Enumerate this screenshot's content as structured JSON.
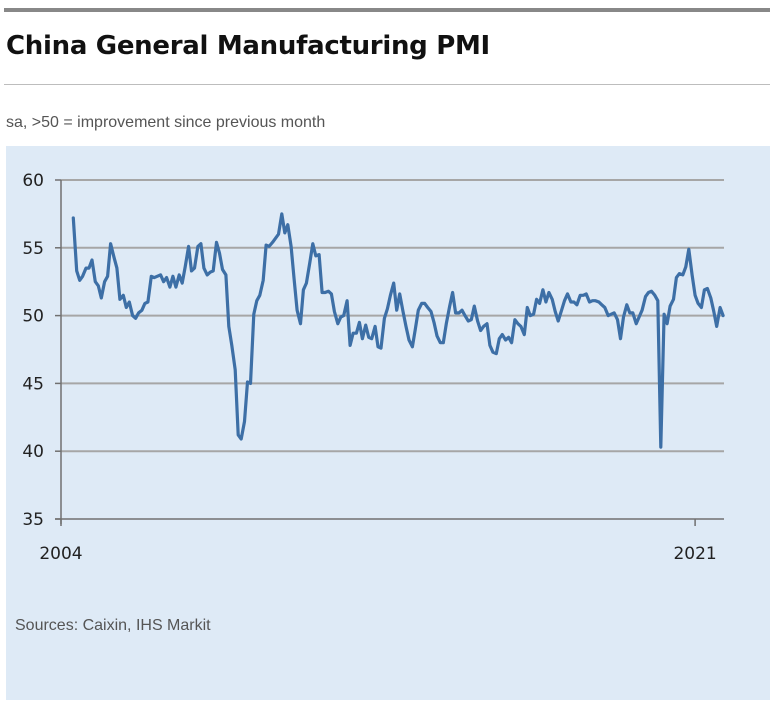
{
  "header": {
    "title": "China General Manufacturing PMI",
    "subtitle": "sa, >50 = improvement since previous month"
  },
  "footer": {
    "source": "Sources: Caixin, IHS Markit"
  },
  "colors": {
    "line": "#3d6fa6",
    "panel_background": "#deeaf6",
    "grid": "#a6a6a6"
  },
  "chart_data": {
    "type": "line",
    "title": "China General Manufacturing PMI",
    "subtitle": "sa, >50 = improvement since previous month",
    "xlabel": "",
    "ylabel": "",
    "x_range": [
      2004.33,
      2021.75
    ],
    "ylim": [
      35,
      60
    ],
    "yticks": [
      35,
      40,
      45,
      50,
      55,
      60
    ],
    "ytick_labels": [
      "35",
      "40",
      "45",
      "50",
      "55",
      "60"
    ],
    "xtick_labels": [
      {
        "x": 2004,
        "label": "2004"
      },
      {
        "x": 2021,
        "label": "2021"
      }
    ],
    "grid": "horizontal",
    "legend": "none",
    "series": [
      {
        "name": "China General Manufacturing PMI",
        "points": [
          [
            2004.33,
            57.2
          ],
          [
            2004.42,
            53.3
          ],
          [
            2004.5,
            52.6
          ],
          [
            2004.58,
            52.9
          ],
          [
            2004.67,
            53.5
          ],
          [
            2004.75,
            53.5
          ],
          [
            2004.83,
            54.1
          ],
          [
            2004.92,
            52.5
          ],
          [
            2005.0,
            52.2
          ],
          [
            2005.08,
            51.3
          ],
          [
            2005.17,
            52.5
          ],
          [
            2005.25,
            52.9
          ],
          [
            2005.33,
            55.3
          ],
          [
            2005.42,
            54.3
          ],
          [
            2005.5,
            53.5
          ],
          [
            2005.58,
            51.2
          ],
          [
            2005.67,
            51.5
          ],
          [
            2005.75,
            50.6
          ],
          [
            2005.83,
            51.0
          ],
          [
            2005.92,
            50.0
          ],
          [
            2006.0,
            49.8
          ],
          [
            2006.08,
            50.2
          ],
          [
            2006.17,
            50.4
          ],
          [
            2006.25,
            50.9
          ],
          [
            2006.33,
            51.0
          ],
          [
            2006.42,
            52.9
          ],
          [
            2006.5,
            52.8
          ],
          [
            2006.58,
            52.9
          ],
          [
            2006.67,
            53.0
          ],
          [
            2006.75,
            52.5
          ],
          [
            2006.83,
            52.8
          ],
          [
            2006.92,
            52.1
          ],
          [
            2007.0,
            52.9
          ],
          [
            2007.08,
            52.1
          ],
          [
            2007.17,
            53.0
          ],
          [
            2007.25,
            52.4
          ],
          [
            2007.33,
            53.6
          ],
          [
            2007.42,
            55.1
          ],
          [
            2007.5,
            53.3
          ],
          [
            2007.58,
            53.5
          ],
          [
            2007.67,
            55.1
          ],
          [
            2007.75,
            55.3
          ],
          [
            2007.83,
            53.5
          ],
          [
            2007.92,
            53.0
          ],
          [
            2008.0,
            53.2
          ],
          [
            2008.08,
            53.3
          ],
          [
            2008.17,
            55.4
          ],
          [
            2008.25,
            54.6
          ],
          [
            2008.33,
            53.4
          ],
          [
            2008.42,
            53.0
          ],
          [
            2008.5,
            49.2
          ],
          [
            2008.58,
            47.8
          ],
          [
            2008.67,
            46.0
          ],
          [
            2008.75,
            41.2
          ],
          [
            2008.83,
            40.9
          ],
          [
            2008.92,
            42.2
          ],
          [
            2009.0,
            45.1
          ],
          [
            2009.08,
            45.0
          ],
          [
            2009.17,
            50.1
          ],
          [
            2009.25,
            51.1
          ],
          [
            2009.33,
            51.5
          ],
          [
            2009.42,
            52.6
          ],
          [
            2009.5,
            55.2
          ],
          [
            2009.58,
            55.1
          ],
          [
            2009.67,
            55.4
          ],
          [
            2009.75,
            55.7
          ],
          [
            2009.83,
            56.0
          ],
          [
            2009.92,
            57.5
          ],
          [
            2010.0,
            56.1
          ],
          [
            2010.08,
            56.7
          ],
          [
            2010.17,
            55.1
          ],
          [
            2010.25,
            52.7
          ],
          [
            2010.33,
            50.4
          ],
          [
            2010.42,
            49.4
          ],
          [
            2010.5,
            51.9
          ],
          [
            2010.58,
            52.4
          ],
          [
            2010.67,
            53.9
          ],
          [
            2010.75,
            55.3
          ],
          [
            2010.83,
            54.4
          ],
          [
            2010.92,
            54.5
          ],
          [
            2011.0,
            51.7
          ],
          [
            2011.08,
            51.7
          ],
          [
            2011.17,
            51.8
          ],
          [
            2011.25,
            51.6
          ],
          [
            2011.33,
            50.3
          ],
          [
            2011.42,
            49.4
          ],
          [
            2011.5,
            49.9
          ],
          [
            2011.58,
            50.0
          ],
          [
            2011.67,
            51.1
          ],
          [
            2011.75,
            47.8
          ],
          [
            2011.83,
            48.7
          ],
          [
            2011.92,
            48.7
          ],
          [
            2012.0,
            49.5
          ],
          [
            2012.08,
            48.3
          ],
          [
            2012.17,
            49.3
          ],
          [
            2012.25,
            48.4
          ],
          [
            2012.33,
            48.3
          ],
          [
            2012.42,
            49.2
          ],
          [
            2012.5,
            47.7
          ],
          [
            2012.58,
            47.6
          ],
          [
            2012.67,
            49.8
          ],
          [
            2012.75,
            50.5
          ],
          [
            2012.83,
            51.5
          ],
          [
            2012.92,
            52.4
          ],
          [
            2013.0,
            50.4
          ],
          [
            2013.08,
            51.6
          ],
          [
            2013.17,
            50.3
          ],
          [
            2013.25,
            49.2
          ],
          [
            2013.33,
            48.2
          ],
          [
            2013.42,
            47.7
          ],
          [
            2013.5,
            49.0
          ],
          [
            2013.58,
            50.4
          ],
          [
            2013.67,
            50.9
          ],
          [
            2013.75,
            50.9
          ],
          [
            2013.83,
            50.6
          ],
          [
            2013.92,
            50.3
          ],
          [
            2014.0,
            49.5
          ],
          [
            2014.08,
            48.5
          ],
          [
            2014.17,
            48.0
          ],
          [
            2014.25,
            48.0
          ],
          [
            2014.33,
            49.4
          ],
          [
            2014.42,
            50.7
          ],
          [
            2014.5,
            51.7
          ],
          [
            2014.58,
            50.2
          ],
          [
            2014.67,
            50.2
          ],
          [
            2014.75,
            50.4
          ],
          [
            2014.83,
            50.0
          ],
          [
            2014.92,
            49.6
          ],
          [
            2015.0,
            49.7
          ],
          [
            2015.08,
            50.7
          ],
          [
            2015.17,
            49.6
          ],
          [
            2015.25,
            48.9
          ],
          [
            2015.33,
            49.2
          ],
          [
            2015.42,
            49.4
          ],
          [
            2015.5,
            47.8
          ],
          [
            2015.58,
            47.3
          ],
          [
            2015.67,
            47.2
          ],
          [
            2015.75,
            48.3
          ],
          [
            2015.83,
            48.6
          ],
          [
            2015.92,
            48.2
          ],
          [
            2016.0,
            48.4
          ],
          [
            2016.08,
            48.0
          ],
          [
            2016.17,
            49.7
          ],
          [
            2016.25,
            49.4
          ],
          [
            2016.33,
            49.2
          ],
          [
            2016.42,
            48.6
          ],
          [
            2016.5,
            50.6
          ],
          [
            2016.58,
            50.0
          ],
          [
            2016.67,
            50.1
          ],
          [
            2016.75,
            51.2
          ],
          [
            2016.83,
            50.9
          ],
          [
            2016.92,
            51.9
          ],
          [
            2017.0,
            51.0
          ],
          [
            2017.08,
            51.7
          ],
          [
            2017.17,
            51.2
          ],
          [
            2017.25,
            50.3
          ],
          [
            2017.33,
            49.6
          ],
          [
            2017.42,
            50.4
          ],
          [
            2017.5,
            51.1
          ],
          [
            2017.58,
            51.6
          ],
          [
            2017.67,
            51.0
          ],
          [
            2017.75,
            51.0
          ],
          [
            2017.83,
            50.8
          ],
          [
            2017.92,
            51.5
          ],
          [
            2018.0,
            51.5
          ],
          [
            2018.08,
            51.6
          ],
          [
            2018.17,
            51.0
          ],
          [
            2018.25,
            51.1
          ],
          [
            2018.33,
            51.1
          ],
          [
            2018.42,
            51.0
          ],
          [
            2018.5,
            50.8
          ],
          [
            2018.58,
            50.6
          ],
          [
            2018.67,
            50.0
          ],
          [
            2018.75,
            50.1
          ],
          [
            2018.83,
            50.2
          ],
          [
            2018.92,
            49.7
          ],
          [
            2019.0,
            48.3
          ],
          [
            2019.08,
            49.9
          ],
          [
            2019.17,
            50.8
          ],
          [
            2019.25,
            50.2
          ],
          [
            2019.33,
            50.2
          ],
          [
            2019.42,
            49.4
          ],
          [
            2019.5,
            49.9
          ],
          [
            2019.58,
            50.4
          ],
          [
            2019.67,
            51.4
          ],
          [
            2019.75,
            51.7
          ],
          [
            2019.83,
            51.8
          ],
          [
            2019.92,
            51.5
          ],
          [
            2020.0,
            51.1
          ],
          [
            2020.08,
            40.3
          ],
          [
            2020.17,
            50.1
          ],
          [
            2020.25,
            49.4
          ],
          [
            2020.33,
            50.7
          ],
          [
            2020.42,
            51.2
          ],
          [
            2020.5,
            52.8
          ],
          [
            2020.58,
            53.1
          ],
          [
            2020.67,
            53.0
          ],
          [
            2020.75,
            53.6
          ],
          [
            2020.83,
            54.9
          ],
          [
            2020.92,
            53.0
          ],
          [
            2021.0,
            51.5
          ],
          [
            2021.08,
            50.9
          ],
          [
            2021.17,
            50.6
          ],
          [
            2021.25,
            51.9
          ],
          [
            2021.33,
            52.0
          ],
          [
            2021.42,
            51.3
          ],
          [
            2021.5,
            50.3
          ],
          [
            2021.58,
            49.2
          ],
          [
            2021.67,
            50.6
          ],
          [
            2021.75,
            50.0
          ]
        ]
      }
    ]
  }
}
